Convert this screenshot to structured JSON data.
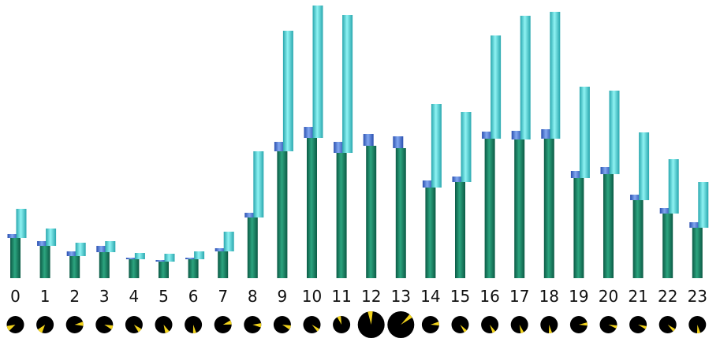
{
  "chart_data": {
    "type": "bar",
    "categories": [
      "0",
      "1",
      "2",
      "3",
      "4",
      "5",
      "6",
      "7",
      "8",
      "9",
      "10",
      "11",
      "12",
      "13",
      "14",
      "15",
      "16",
      "17",
      "18",
      "19",
      "20",
      "21",
      "22",
      "23"
    ],
    "series": [
      {
        "values": [
          51,
          41,
          28,
          33,
          24,
          21,
          24,
          34,
          77,
          161,
          178,
          159,
          168,
          165,
          115,
          122,
          177,
          176,
          177,
          127,
          132,
          99,
          82,
          64
        ]
      },
      {
        "values": [
          5,
          6,
          6,
          8,
          2,
          2,
          2,
          4,
          6,
          12,
          14,
          14,
          15,
          15,
          9,
          7,
          9,
          11,
          12,
          9,
          9,
          7,
          7,
          7
        ]
      },
      {
        "values": [
          37,
          22,
          17,
          14,
          8,
          10,
          10,
          25,
          84,
          153,
          168,
          175,
          0,
          0,
          106,
          89,
          131,
          157,
          161,
          116,
          106,
          86,
          69,
          58
        ]
      }
    ],
    "ylim": [
      0,
      345
    ],
    "colors": {
      "series1": "#17876a",
      "series2": "#4d7bd8",
      "series3": "#4fd6d6",
      "pie_background": "#000000",
      "pie_slice": "#f2d31c"
    },
    "pie_row": [
      {
        "slice_fraction": 0.1,
        "start_deg": 225,
        "large": false
      },
      {
        "slice_fraction": 0.1,
        "start_deg": 200,
        "large": false
      },
      {
        "slice_fraction": 0.08,
        "start_deg": 70,
        "large": false
      },
      {
        "slice_fraction": 0.08,
        "start_deg": 95,
        "large": false
      },
      {
        "slice_fraction": 0.08,
        "start_deg": 120,
        "large": false
      },
      {
        "slice_fraction": 0.08,
        "start_deg": 140,
        "large": false
      },
      {
        "slice_fraction": 0.06,
        "start_deg": 160,
        "large": false
      },
      {
        "slice_fraction": 0.08,
        "start_deg": 60,
        "large": false
      },
      {
        "slice_fraction": 0.08,
        "start_deg": 80,
        "large": false
      },
      {
        "slice_fraction": 0.08,
        "start_deg": 95,
        "large": false
      },
      {
        "slice_fraction": 0.06,
        "start_deg": 120,
        "large": false
      },
      {
        "slice_fraction": 0.07,
        "start_deg": 330,
        "large": false
      },
      {
        "slice_fraction": 0.06,
        "start_deg": 345,
        "large": true
      },
      {
        "slice_fraction": 0.05,
        "start_deg": 40,
        "large": true
      },
      {
        "slice_fraction": 0.07,
        "start_deg": 70,
        "large": false
      },
      {
        "slice_fraction": 0.06,
        "start_deg": 130,
        "large": false
      },
      {
        "slice_fraction": 0.06,
        "start_deg": 140,
        "large": false
      },
      {
        "slice_fraction": 0.06,
        "start_deg": 150,
        "large": false
      },
      {
        "slice_fraction": 0.06,
        "start_deg": 160,
        "large": false
      },
      {
        "slice_fraction": 0.06,
        "start_deg": 75,
        "large": false
      },
      {
        "slice_fraction": 0.06,
        "start_deg": 95,
        "large": false
      },
      {
        "slice_fraction": 0.06,
        "start_deg": 100,
        "large": false
      },
      {
        "slice_fraction": 0.06,
        "start_deg": 120,
        "large": false
      },
      {
        "slice_fraction": 0.06,
        "start_deg": 160,
        "large": false
      }
    ]
  }
}
